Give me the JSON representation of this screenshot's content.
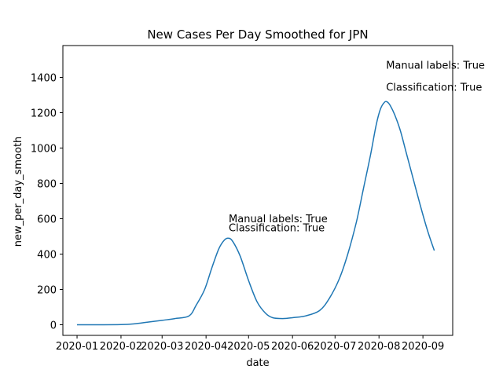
{
  "chart_data": {
    "type": "line",
    "title": "New Cases Per Day Smoothed for JPN",
    "xlabel": "date",
    "ylabel": "new_per_day_smooth",
    "x_tick_labels": [
      "2020-01",
      "2020-02",
      "2020-03",
      "2020-04",
      "2020-05",
      "2020-06",
      "2020-07",
      "2020-08",
      "2020-09"
    ],
    "x_ticks": [
      "2020-01-01",
      "2020-02-01",
      "2020-03-01",
      "2020-04-01",
      "2020-05-01",
      "2020-06-01",
      "2020-07-01",
      "2020-08-01",
      "2020-09-01"
    ],
    "xlim": [
      "2019-12-22",
      "2020-09-22"
    ],
    "y_ticks": [
      0,
      200,
      400,
      600,
      800,
      1000,
      1200,
      1400
    ],
    "ylim": [
      -60,
      1580
    ],
    "grid": false,
    "line_color": "#1f77b4",
    "series": [
      {
        "x": [
          "2020-01-01",
          "2020-01-15",
          "2020-02-01",
          "2020-02-10",
          "2020-02-20",
          "2020-03-01",
          "2020-03-10",
          "2020-03-20",
          "2020-03-25",
          "2020-03-31",
          "2020-04-05",
          "2020-04-10",
          "2020-04-14",
          "2020-04-17",
          "2020-04-20",
          "2020-04-25",
          "2020-05-01",
          "2020-05-07",
          "2020-05-13",
          "2020-05-18",
          "2020-05-25",
          "2020-06-01",
          "2020-06-10",
          "2020-06-20",
          "2020-06-27",
          "2020-07-04",
          "2020-07-10",
          "2020-07-16",
          "2020-07-21",
          "2020-07-26",
          "2020-07-30",
          "2020-08-02",
          "2020-08-05",
          "2020-08-07",
          "2020-08-09",
          "2020-08-12",
          "2020-08-16",
          "2020-08-20",
          "2020-08-25",
          "2020-08-30",
          "2020-09-04",
          "2020-09-09"
        ],
        "y": [
          0,
          0,
          1,
          5,
          15,
          25,
          35,
          50,
          110,
          200,
          320,
          430,
          480,
          490,
          470,
          390,
          250,
          130,
          65,
          40,
          35,
          40,
          50,
          80,
          150,
          260,
          400,
          580,
          770,
          960,
          1130,
          1220,
          1260,
          1260,
          1240,
          1190,
          1100,
          980,
          830,
          680,
          540,
          420
        ]
      }
    ],
    "annotations": [
      {
        "text": "Manual labels: True",
        "x": "2020-04-17",
        "y": 580
      },
      {
        "text": "Classification: True",
        "x": "2020-04-17",
        "y": 530
      },
      {
        "text": "Manual labels: True",
        "x": "2020-08-06",
        "y": 1450
      },
      {
        "text": "Classification: True",
        "x": "2020-08-06",
        "y": 1325
      }
    ]
  }
}
